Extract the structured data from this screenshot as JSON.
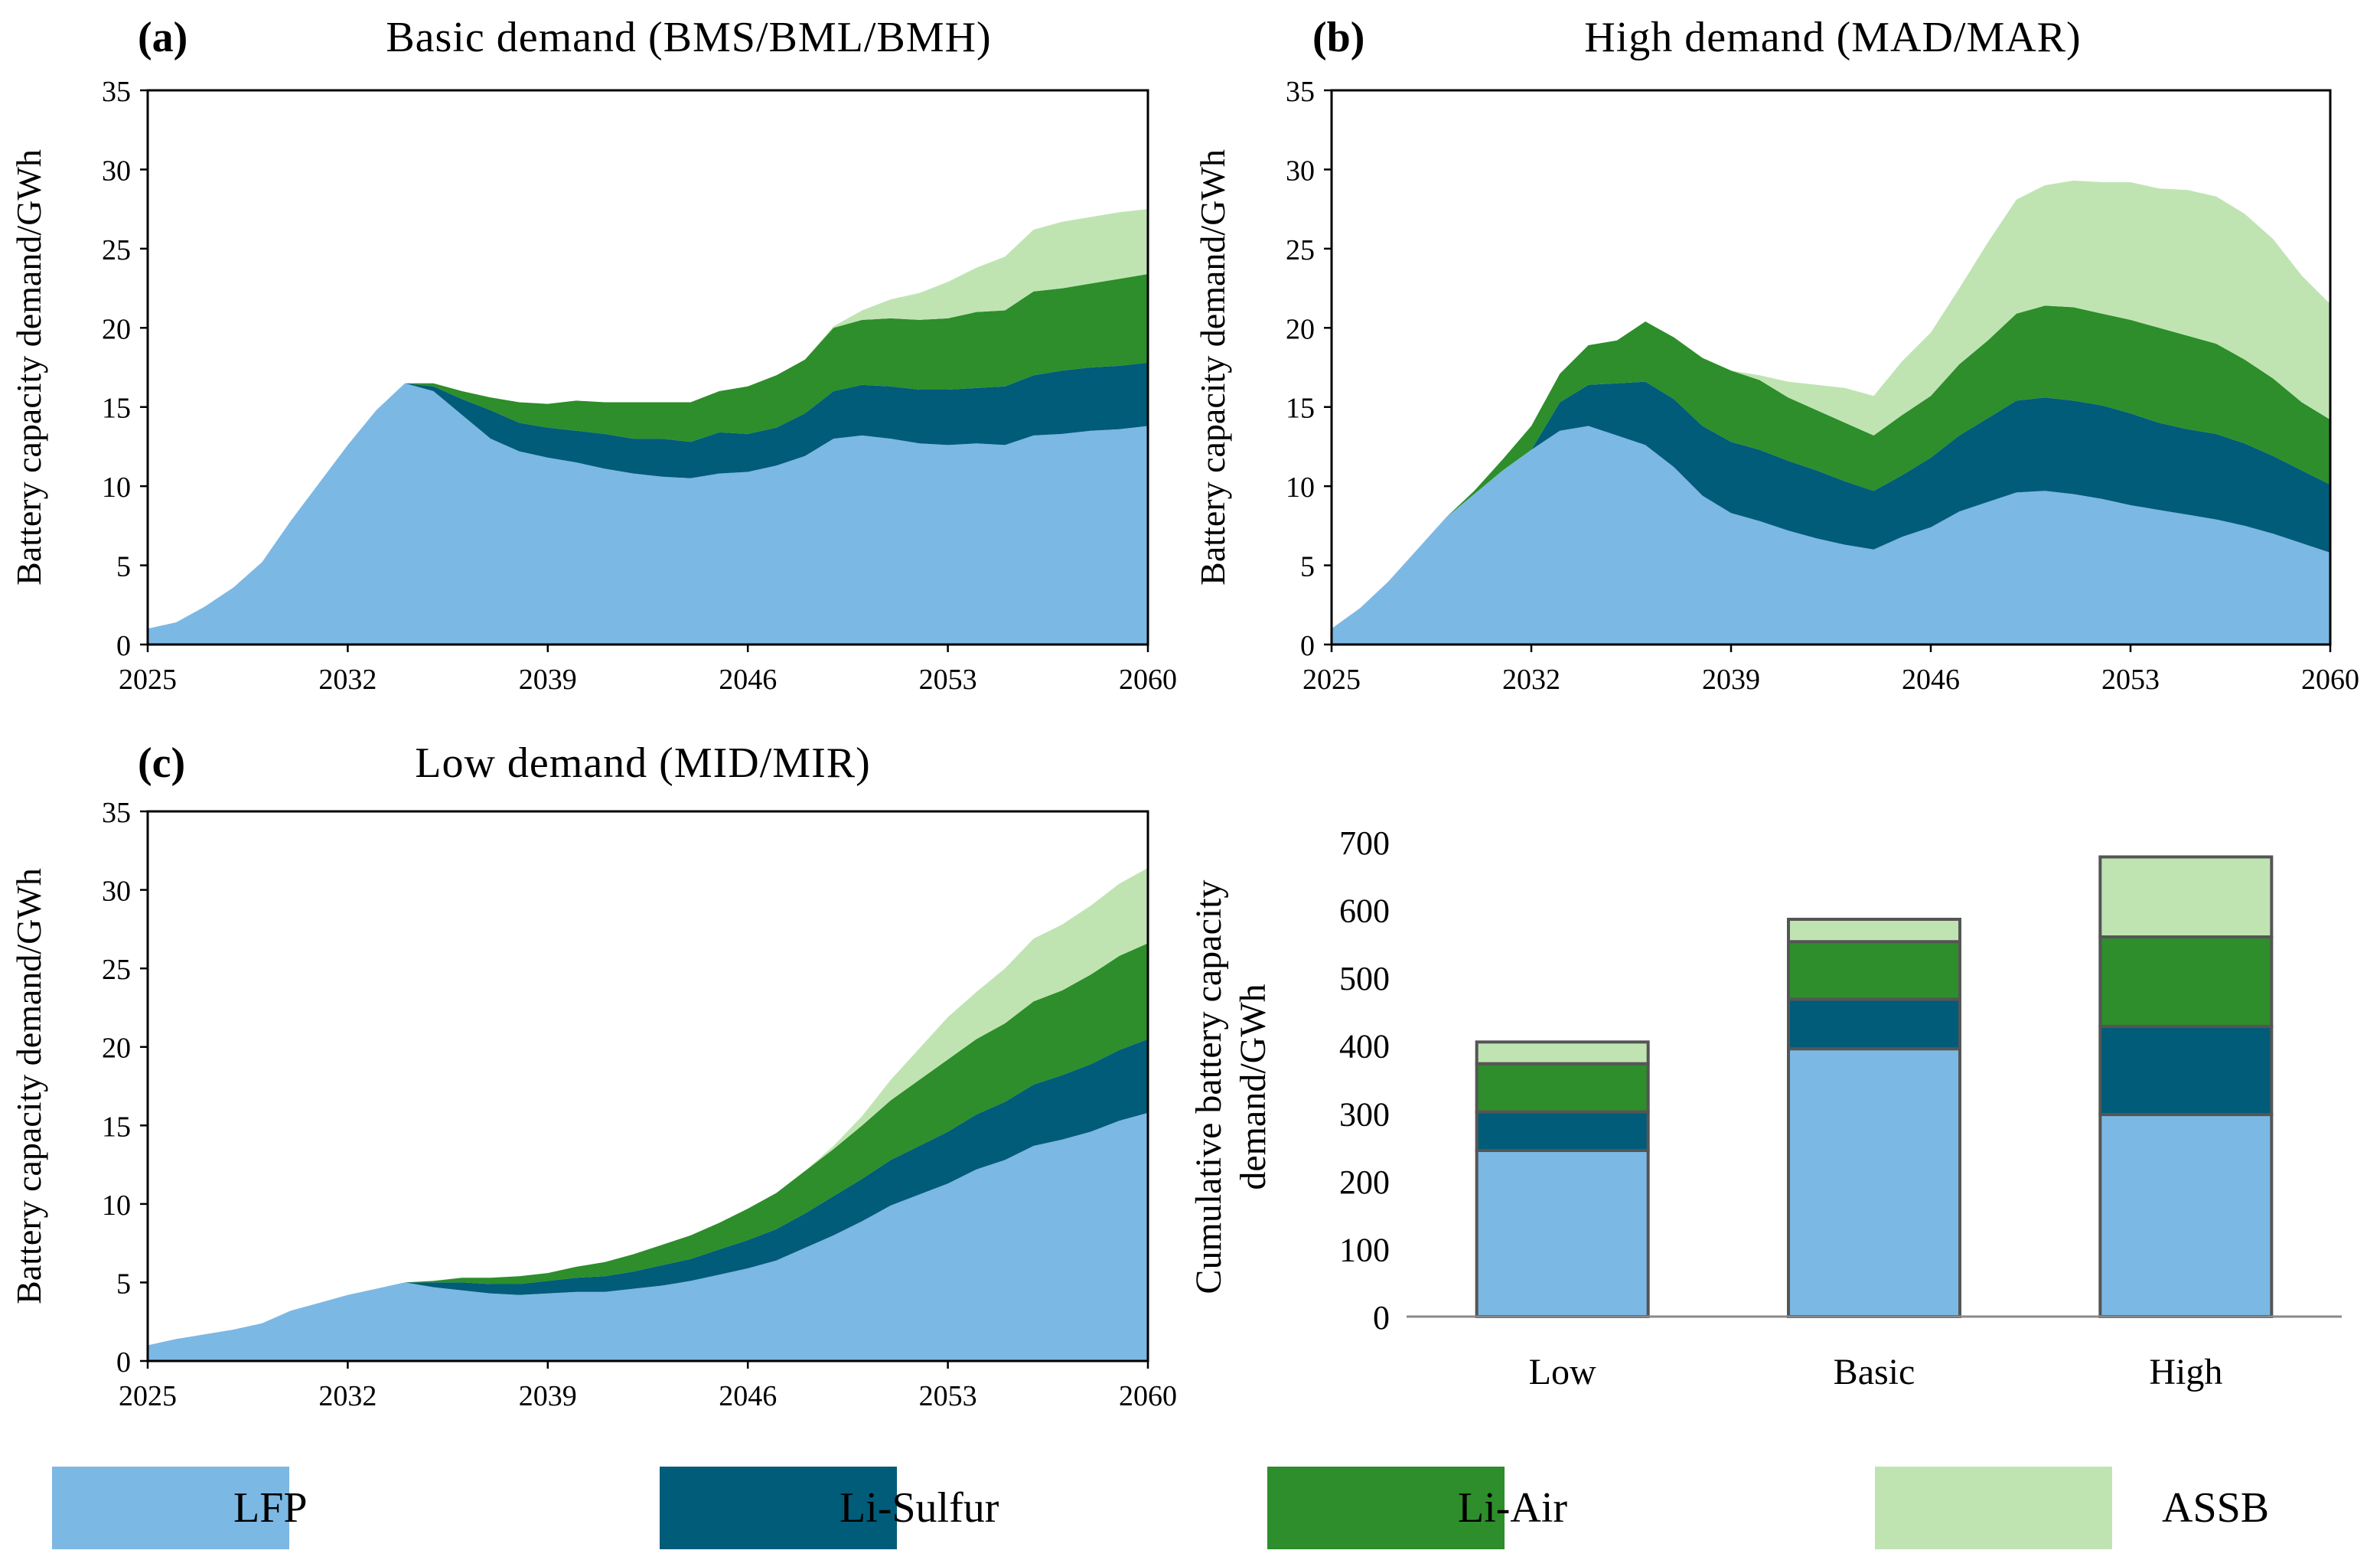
{
  "legend": {
    "items": [
      {
        "key": "LFP",
        "label": "LFP",
        "color": "#7cb8e4"
      },
      {
        "key": "LiS",
        "label": "Li-Sulfur",
        "color": "#015c7a"
      },
      {
        "key": "LiAir",
        "label": "Li-Air",
        "color": "#2d8e2b"
      },
      {
        "key": "ASSB",
        "label": "ASSB",
        "color": "#bfe4b2"
      }
    ]
  },
  "chart_data": [
    {
      "id": "a",
      "type": "area",
      "stacked": true,
      "panel_label": "(a)",
      "title": "Basic demand (BMS/BML/BMH)",
      "ylabel": "Battery capacity demand/GWh",
      "xlabel": "",
      "xlim": [
        2025,
        2060
      ],
      "ylim": [
        0,
        35
      ],
      "xticks": [
        "2025",
        "2032",
        "2039",
        "2046",
        "2053",
        "2060"
      ],
      "yticks": [
        "0",
        "5",
        "10",
        "15",
        "20",
        "25",
        "30",
        "35"
      ],
      "x": [
        2025,
        2026,
        2027,
        2028,
        2029,
        2030,
        2031,
        2032,
        2033,
        2034,
        2035,
        2036,
        2037,
        2038,
        2039,
        2040,
        2041,
        2042,
        2043,
        2044,
        2045,
        2046,
        2047,
        2048,
        2049,
        2050,
        2051,
        2052,
        2053,
        2054,
        2055,
        2056,
        2057,
        2058,
        2059,
        2060
      ],
      "series": [
        {
          "name": "LFP",
          "values": [
            1.0,
            1.4,
            2.4,
            3.6,
            5.2,
            7.8,
            10.2,
            12.6,
            14.8,
            16.5,
            16.0,
            14.5,
            13.0,
            12.2,
            11.8,
            11.5,
            11.1,
            10.8,
            10.6,
            10.5,
            10.8,
            10.9,
            11.3,
            11.9,
            13.0,
            13.2,
            13.0,
            12.7,
            12.6,
            12.7,
            12.6,
            13.2,
            13.3,
            13.5,
            13.6,
            13.8
          ]
        },
        {
          "name": "Li-Sulfur",
          "values": [
            0,
            0,
            0,
            0,
            0,
            0,
            0,
            0,
            0,
            0,
            0.3,
            1.0,
            1.8,
            1.8,
            1.9,
            2.0,
            2.2,
            2.2,
            2.4,
            2.3,
            2.6,
            2.4,
            2.4,
            2.7,
            3.0,
            3.2,
            3.3,
            3.4,
            3.5,
            3.5,
            3.7,
            3.8,
            4.0,
            4.0,
            4.0,
            4.0
          ]
        },
        {
          "name": "Li-Air",
          "values": [
            0,
            0,
            0,
            0,
            0,
            0,
            0,
            0,
            0,
            0,
            0.2,
            0.5,
            0.8,
            1.3,
            1.5,
            1.9,
            2.0,
            2.3,
            2.3,
            2.5,
            2.6,
            3.0,
            3.3,
            3.4,
            4.0,
            4.1,
            4.3,
            4.4,
            4.5,
            4.8,
            4.8,
            5.3,
            5.2,
            5.3,
            5.5,
            5.6
          ]
        },
        {
          "name": "ASSB",
          "values": [
            0,
            0,
            0,
            0,
            0,
            0,
            0,
            0,
            0,
            0,
            0,
            0,
            0,
            0,
            0,
            0,
            0,
            0,
            0,
            0,
            0,
            0,
            0,
            0,
            0.1,
            0.6,
            1.2,
            1.7,
            2.3,
            2.8,
            3.4,
            3.9,
            4.2,
            4.2,
            4.2,
            4.1
          ]
        }
      ]
    },
    {
      "id": "b",
      "type": "area",
      "stacked": true,
      "panel_label": "(b)",
      "title": "High demand (MAD/MAR)",
      "ylabel": "Battery capacity demand/GWh",
      "xlabel": "",
      "xlim": [
        2025,
        2060
      ],
      "ylim": [
        0,
        35
      ],
      "xticks": [
        "2025",
        "2032",
        "2039",
        "2046",
        "2053",
        "2060"
      ],
      "yticks": [
        "0",
        "5",
        "10",
        "15",
        "20",
        "25",
        "30",
        "35"
      ],
      "x": [
        2025,
        2026,
        2027,
        2028,
        2029,
        2030,
        2031,
        2032,
        2033,
        2034,
        2035,
        2036,
        2037,
        2038,
        2039,
        2040,
        2041,
        2042,
        2043,
        2044,
        2045,
        2046,
        2047,
        2048,
        2049,
        2050,
        2051,
        2052,
        2053,
        2054,
        2055,
        2056,
        2057,
        2058,
        2059,
        2060
      ],
      "series": [
        {
          "name": "LFP",
          "values": [
            1.0,
            2.3,
            4.0,
            6.0,
            8.0,
            9.5,
            11.0,
            12.3,
            13.5,
            13.8,
            13.2,
            12.6,
            11.2,
            9.4,
            8.3,
            7.8,
            7.2,
            6.7,
            6.3,
            6.0,
            6.8,
            7.4,
            8.4,
            9.0,
            9.6,
            9.7,
            9.5,
            9.2,
            8.8,
            8.5,
            8.2,
            7.9,
            7.5,
            7.0,
            6.4,
            5.8
          ]
        },
        {
          "name": "Li-Sulfur",
          "values": [
            0,
            0,
            0,
            0,
            0,
            0,
            0,
            0,
            1.8,
            2.6,
            3.3,
            4.0,
            4.3,
            4.4,
            4.5,
            4.5,
            4.4,
            4.3,
            4.0,
            3.7,
            3.9,
            4.4,
            4.8,
            5.3,
            5.8,
            5.9,
            5.9,
            5.9,
            5.8,
            5.5,
            5.4,
            5.4,
            5.2,
            4.9,
            4.6,
            4.3
          ]
        },
        {
          "name": "Li-Air",
          "values": [
            0,
            0,
            0,
            0,
            0,
            0.2,
            0.7,
            1.5,
            1.8,
            2.5,
            2.7,
            3.8,
            3.9,
            4.3,
            4.5,
            4.4,
            4.0,
            3.8,
            3.7,
            3.5,
            3.8,
            3.9,
            4.5,
            4.9,
            5.5,
            5.8,
            5.9,
            5.8,
            5.9,
            6.0,
            5.9,
            5.7,
            5.3,
            4.9,
            4.3,
            4.1
          ]
        },
        {
          "name": "ASSB",
          "values": [
            0,
            0,
            0,
            0,
            0,
            0,
            0,
            0,
            0,
            0,
            0,
            0,
            0,
            0,
            0,
            0.3,
            1.0,
            1.6,
            2.2,
            2.5,
            3.4,
            4.0,
            4.8,
            6.2,
            7.2,
            7.6,
            8.0,
            8.3,
            8.7,
            8.8,
            9.2,
            9.3,
            9.2,
            8.8,
            8.0,
            7.3
          ]
        }
      ]
    },
    {
      "id": "c",
      "type": "area",
      "stacked": true,
      "panel_label": "(c)",
      "title": "Low demand (MID/MIR)",
      "ylabel": "Battery capacity demand/GWh",
      "xlabel": "",
      "xlim": [
        2025,
        2060
      ],
      "ylim": [
        0,
        35
      ],
      "xticks": [
        "2025",
        "2032",
        "2039",
        "2046",
        "2053",
        "2060"
      ],
      "yticks": [
        "0",
        "5",
        "10",
        "15",
        "20",
        "25",
        "30",
        "35"
      ],
      "x": [
        2025,
        2026,
        2027,
        2028,
        2029,
        2030,
        2031,
        2032,
        2033,
        2034,
        2035,
        2036,
        2037,
        2038,
        2039,
        2040,
        2041,
        2042,
        2043,
        2044,
        2045,
        2046,
        2047,
        2048,
        2049,
        2050,
        2051,
        2052,
        2053,
        2054,
        2055,
        2056,
        2057,
        2058,
        2059,
        2060
      ],
      "series": [
        {
          "name": "LFP",
          "values": [
            1.0,
            1.4,
            1.7,
            2.0,
            2.4,
            3.2,
            3.7,
            4.2,
            4.6,
            5.0,
            4.7,
            4.5,
            4.3,
            4.2,
            4.3,
            4.4,
            4.4,
            4.6,
            4.8,
            5.1,
            5.5,
            5.9,
            6.4,
            7.2,
            8.0,
            8.9,
            9.9,
            10.6,
            11.3,
            12.2,
            12.8,
            13.7,
            14.1,
            14.6,
            15.3,
            15.8
          ]
        },
        {
          "name": "Li-Sulfur",
          "values": [
            0,
            0,
            0,
            0,
            0,
            0,
            0,
            0,
            0,
            0,
            0.3,
            0.5,
            0.6,
            0.7,
            0.8,
            0.9,
            1.0,
            1.1,
            1.3,
            1.4,
            1.6,
            1.8,
            2.0,
            2.2,
            2.5,
            2.7,
            2.9,
            3.1,
            3.3,
            3.5,
            3.7,
            3.9,
            4.1,
            4.3,
            4.5,
            4.7
          ]
        },
        {
          "name": "Li-Air",
          "values": [
            0,
            0,
            0,
            0,
            0,
            0,
            0,
            0,
            0,
            0,
            0.1,
            0.3,
            0.4,
            0.5,
            0.5,
            0.7,
            0.9,
            1.1,
            1.3,
            1.5,
            1.7,
            2.0,
            2.3,
            2.7,
            3.0,
            3.4,
            3.8,
            4.2,
            4.6,
            4.8,
            5.0,
            5.3,
            5.4,
            5.7,
            6.0,
            6.1
          ]
        },
        {
          "name": "ASSB",
          "values": [
            0,
            0,
            0,
            0,
            0,
            0,
            0,
            0,
            0,
            0,
            0,
            0,
            0,
            0,
            0,
            0,
            0,
            0,
            0,
            0,
            0,
            0,
            0,
            0,
            0.2,
            0.6,
            1.3,
            2.0,
            2.7,
            3.0,
            3.5,
            4.0,
            4.2,
            4.4,
            4.6,
            4.8
          ]
        }
      ]
    },
    {
      "id": "d",
      "type": "bar",
      "stacked": true,
      "title": "",
      "ylabel": "Cumulative battery capacity demand/GWh",
      "xlabel": "",
      "ylim": [
        0,
        700
      ],
      "yticks": [
        "0",
        "100",
        "200",
        "300",
        "400",
        "500",
        "600",
        "700"
      ],
      "categories": [
        "Low",
        "Basic",
        "High"
      ],
      "series": [
        {
          "name": "LFP",
          "values": [
            245,
            395,
            298
          ]
        },
        {
          "name": "Li-Sulfur",
          "values": [
            57,
            73,
            130
          ]
        },
        {
          "name": "Li-Air",
          "values": [
            71,
            85,
            132
          ]
        },
        {
          "name": "ASSB",
          "values": [
            32,
            33,
            118
          ]
        }
      ]
    }
  ]
}
